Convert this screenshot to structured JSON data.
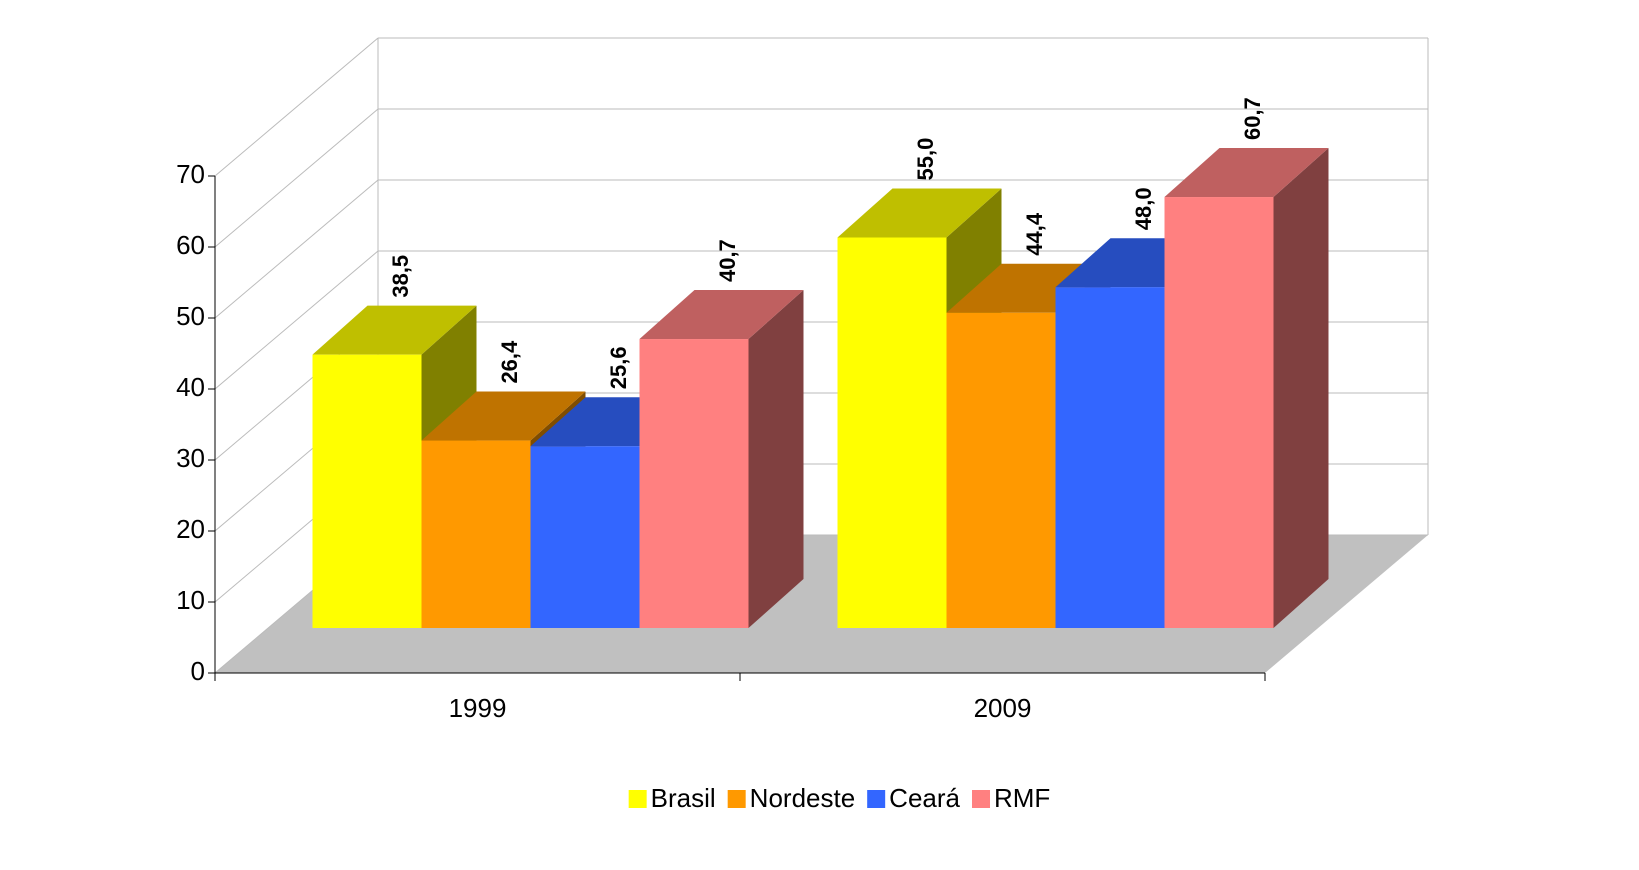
{
  "chart_data": {
    "type": "bar3d",
    "categories": [
      "1999",
      "2009"
    ],
    "series": [
      {
        "name": "Brasil",
        "color": "#ffff00",
        "values": [
          38.5,
          55.0
        ],
        "value_labels": [
          "38,5",
          "55,0"
        ]
      },
      {
        "name": "Nordeste",
        "color": "#ff9900",
        "values": [
          26.4,
          44.4
        ],
        "value_labels": [
          "26,4",
          "44,4"
        ]
      },
      {
        "name": "Ceará",
        "color": "#3366ff",
        "values": [
          25.6,
          48.0
        ],
        "value_labels": [
          "25,6",
          "48,0"
        ]
      },
      {
        "name": "RMF",
        "color": "#ff8080",
        "values": [
          40.7,
          60.7
        ],
        "value_labels": [
          "40,7",
          "60,7"
        ]
      }
    ],
    "ylim": [
      0,
      70
    ],
    "yticks": [
      0,
      10,
      20,
      30,
      40,
      50,
      60,
      70
    ],
    "grid": true,
    "legend": "bottom"
  }
}
